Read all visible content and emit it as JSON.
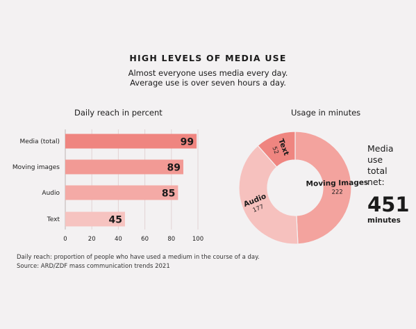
{
  "header": {
    "title": "HIGH LEVELS OF MEDIA USE",
    "subtitle_line1": "Almost everyone uses media every day.",
    "subtitle_line2": "Average use is over seven hours a day."
  },
  "footer": {
    "note": "Daily reach: proportion of people who have used a medium in the course of a day.",
    "source": "Source: ARD/ZDF mass communication trends 2021"
  },
  "total": {
    "label_lines": [
      "Media",
      "use",
      "total",
      "net:"
    ],
    "value": "451",
    "unit": "minutes"
  },
  "colors": {
    "background": "#f3f1f2",
    "bar_media_total": "#ef8580",
    "bar_moving_images": "#f29a95",
    "bar_audio": "#f4aaa6",
    "bar_text": "#f6c3c0",
    "donut_moving_images": "#f3a39e",
    "donut_audio": "#f6c1be",
    "donut_text": "#ef8580"
  },
  "chart_data": [
    {
      "type": "bar",
      "orientation": "horizontal",
      "title": "Daily reach in percent",
      "categories": [
        "Media (total)",
        "Moving images",
        "Audio",
        "Text"
      ],
      "values": [
        99,
        89,
        85,
        45
      ],
      "value_labels": [
        "99",
        "89",
        "85",
        "45"
      ],
      "xlim": [
        0,
        100
      ],
      "xticks": [
        0,
        20,
        40,
        60,
        80,
        100
      ],
      "grid": true
    },
    {
      "type": "pie",
      "variant": "donut",
      "title": "Usage in minutes",
      "slices": [
        {
          "name": "Moving Images",
          "value": 222,
          "label": "222"
        },
        {
          "name": "Audio",
          "value": 177,
          "label": "177"
        },
        {
          "name": "Text",
          "value": 52,
          "label": "52"
        }
      ]
    }
  ]
}
